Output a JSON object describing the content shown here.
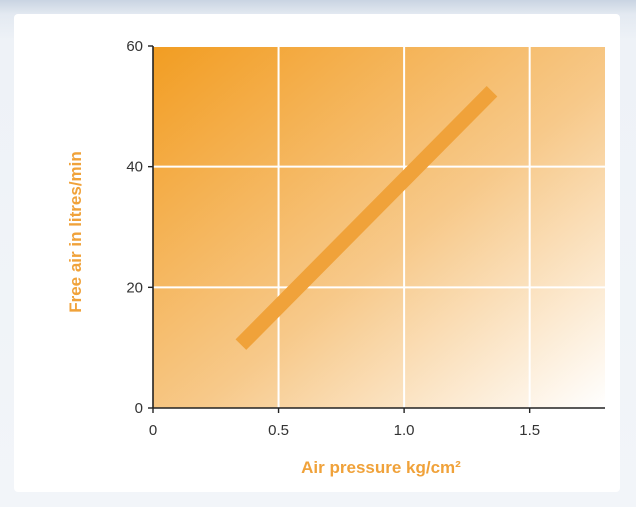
{
  "chart_data": {
    "type": "line",
    "title": "",
    "xlabel": "Air pressure kg/cm²",
    "ylabel": "Free air in litres/min",
    "xlim": [
      0,
      1.8
    ],
    "ylim": [
      0,
      60
    ],
    "x_ticks": [
      "0",
      "0.5",
      "1.0",
      "1.5"
    ],
    "x_tick_values": [
      0,
      0.5,
      1.0,
      1.5
    ],
    "y_ticks": [
      "0",
      "20",
      "40",
      "60"
    ],
    "y_tick_values": [
      0,
      20,
      40,
      60
    ],
    "grid": true,
    "series": [
      {
        "x": [
          0.35,
          1.35
        ],
        "y": [
          10.5,
          52.5
        ]
      }
    ],
    "colors": {
      "line": "#f0a23a",
      "gradient_dark": "#f29d22",
      "gradient_light": "#ffffff",
      "axis_title": "#f0a23a"
    }
  }
}
